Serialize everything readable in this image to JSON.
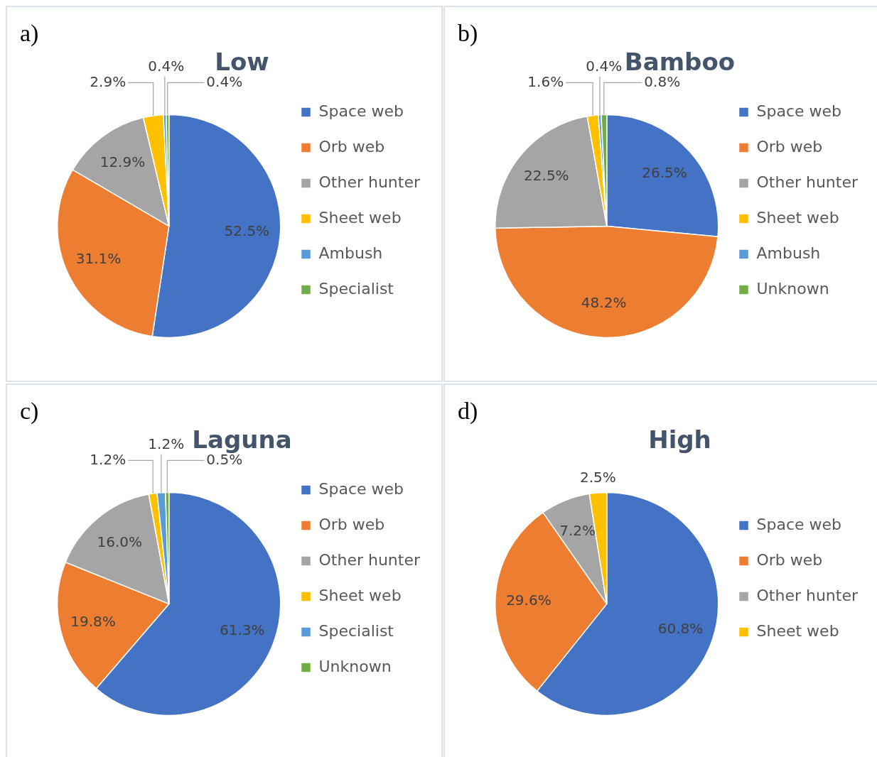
{
  "chart_data": [
    {
      "type": "pie",
      "title": "Low",
      "annotations": [
        "a)"
      ],
      "legend": "right",
      "categories": [
        "Space web",
        "Orb web",
        "Other hunter",
        "Sheet web",
        "Ambush",
        "Specialist"
      ],
      "values": [
        52.5,
        31.1,
        12.9,
        2.9,
        0.4,
        0.4
      ],
      "value_labels": [
        "52.5%",
        "31.1%",
        "12.9%",
        "2.9%",
        "0.4%",
        "0.4%"
      ],
      "colors": [
        "#4472c4",
        "#ed7d31",
        "#a5a5a5",
        "#ffc000",
        "#5b9bd5",
        "#70ad47"
      ]
    },
    {
      "type": "pie",
      "title": "Bamboo",
      "annotations": [
        "b)"
      ],
      "legend": "right",
      "categories": [
        "Space web",
        "Orb web",
        "Other hunter",
        "Sheet web",
        "Ambush",
        "Unknown"
      ],
      "values": [
        26.5,
        48.2,
        22.5,
        1.6,
        0.4,
        0.8
      ],
      "value_labels": [
        "26.5%",
        "48.2%",
        "22.5%",
        "1.6%",
        "0.4%",
        "0.8%"
      ],
      "colors": [
        "#4472c4",
        "#ed7d31",
        "#a5a5a5",
        "#ffc000",
        "#5b9bd5",
        "#70ad47"
      ]
    },
    {
      "type": "pie",
      "title": "Laguna",
      "annotations": [
        "c)"
      ],
      "legend": "right",
      "categories": [
        "Space web",
        "Orb web",
        "Other hunter",
        "Sheet web",
        "Specialist",
        "Unknown"
      ],
      "values": [
        61.3,
        19.8,
        16.0,
        1.2,
        1.2,
        0.5
      ],
      "value_labels": [
        "61.3%",
        "19.8%",
        "16.0%",
        "1.2%",
        "1.2%",
        "0.5%"
      ],
      "colors": [
        "#4472c4",
        "#ed7d31",
        "#a5a5a5",
        "#ffc000",
        "#5b9bd5",
        "#70ad47"
      ]
    },
    {
      "type": "pie",
      "title": "High",
      "annotations": [
        "d)"
      ],
      "legend": "right",
      "categories": [
        "Space web",
        "Orb web",
        "Other hunter",
        "Sheet web"
      ],
      "values": [
        60.8,
        29.6,
        7.2,
        2.5
      ],
      "value_labels": [
        "60.8%",
        "29.6%",
        "7.2%",
        "2.5%"
      ],
      "colors": [
        "#4472c4",
        "#ed7d31",
        "#a5a5a5",
        "#ffc000"
      ]
    }
  ]
}
